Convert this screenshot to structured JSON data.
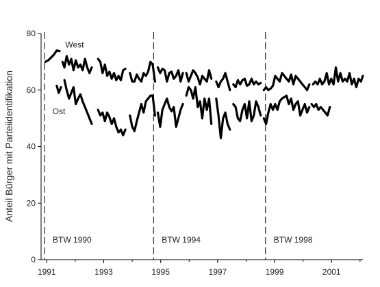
{
  "chart_data": {
    "type": "line",
    "title": "",
    "xlabel": "",
    "ylabel": "Anteil Bürger mit Parteiidentifikation",
    "xlim": [
      1990.8,
      2002.1
    ],
    "ylim": [
      0,
      80
    ],
    "xticks": [
      1991,
      1993,
      1995,
      1997,
      1999,
      2001
    ],
    "yticks": [
      0,
      20,
      40,
      60,
      80
    ],
    "grid": false,
    "legend": "none",
    "colors": {
      "series": "#000000",
      "axis": "#000000",
      "vlines": "#000000"
    },
    "vlines": [
      {
        "x": 1990.92,
        "label": "BTW 1990"
      },
      {
        "x": 1994.75,
        "label": "BTW 1994"
      },
      {
        "x": 1998.68,
        "label": "BTW 1998"
      }
    ],
    "series": [
      {
        "name": "West",
        "segments": [
          [
            [
              1990.95,
              70
            ],
            [
              1991.05,
              70.5
            ],
            [
              1991.15,
              71.5
            ],
            [
              1991.25,
              72.5
            ],
            [
              1991.35,
              74
            ],
            [
              1991.45,
              73.8
            ]
          ],
          [
            [
              1991.55,
              70
            ],
            [
              1991.62,
              68
            ],
            [
              1991.7,
              72
            ],
            [
              1991.78,
              69
            ],
            [
              1991.86,
              71
            ],
            [
              1991.94,
              67
            ],
            [
              1992.02,
              70.5
            ],
            [
              1992.1,
              68
            ],
            [
              1992.18,
              69
            ],
            [
              1992.26,
              67
            ],
            [
              1992.34,
              71
            ],
            [
              1992.42,
              68
            ],
            [
              1992.5,
              66
            ],
            [
              1992.58,
              68
            ]
          ],
          [
            [
              1992.8,
              71
            ],
            [
              1992.88,
              70
            ],
            [
              1992.96,
              66
            ],
            [
              1993.04,
              69
            ],
            [
              1993.12,
              65
            ],
            [
              1993.2,
              66.5
            ],
            [
              1993.28,
              64
            ],
            [
              1993.36,
              66
            ],
            [
              1993.44,
              63.5
            ],
            [
              1993.52,
              65
            ],
            [
              1993.6,
              63.5
            ],
            [
              1993.68,
              67
            ],
            [
              1993.76,
              67.5
            ]
          ],
          [
            [
              1993.92,
              66
            ],
            [
              1994.0,
              63
            ],
            [
              1994.08,
              63
            ],
            [
              1994.16,
              65.5
            ],
            [
              1994.24,
              64
            ],
            [
              1994.32,
              63
            ],
            [
              1994.4,
              66
            ],
            [
              1994.48,
              65
            ],
            [
              1994.56,
              66.5
            ],
            [
              1994.64,
              70
            ],
            [
              1994.72,
              69
            ],
            [
              1994.8,
              63
            ]
          ],
          [
            [
              1994.9,
              68
            ],
            [
              1994.98,
              66
            ],
            [
              1995.06,
              67.5
            ],
            [
              1995.14,
              67
            ],
            [
              1995.22,
              63
            ],
            [
              1995.3,
              66
            ],
            [
              1995.38,
              66.5
            ],
            [
              1995.46,
              64
            ],
            [
              1995.54,
              65
            ],
            [
              1995.62,
              67
            ],
            [
              1995.7,
              63
            ],
            [
              1995.78,
              66
            ]
          ],
          [
            [
              1995.9,
              66
            ],
            [
              1995.98,
              63
            ],
            [
              1996.06,
              65
            ],
            [
              1996.14,
              67
            ],
            [
              1996.22,
              66
            ],
            [
              1996.3,
              64.5
            ],
            [
              1996.38,
              62
            ],
            [
              1996.46,
              65
            ],
            [
              1996.54,
              64
            ],
            [
              1996.62,
              63
            ],
            [
              1996.7,
              67
            ],
            [
              1996.78,
              64
            ]
          ],
          [
            [
              1996.95,
              63
            ],
            [
              1997.03,
              61
            ],
            [
              1997.11,
              63
            ],
            [
              1997.19,
              64
            ],
            [
              1997.27,
              66
            ],
            [
              1997.35,
              63
            ],
            [
              1997.43,
              60
            ]
          ],
          [
            [
              1997.55,
              62
            ],
            [
              1997.63,
              61
            ],
            [
              1997.71,
              63.5
            ],
            [
              1997.79,
              62
            ],
            [
              1997.87,
              63.5
            ],
            [
              1997.95,
              64
            ],
            [
              1998.03,
              61.5
            ],
            [
              1998.11,
              62
            ],
            [
              1998.19,
              64
            ],
            [
              1998.27,
              62
            ],
            [
              1998.35,
              63
            ],
            [
              1998.43,
              62
            ],
            [
              1998.51,
              62.5
            ]
          ],
          [
            [
              1998.62,
              60
            ],
            [
              1998.7,
              61
            ],
            [
              1998.78,
              60
            ],
            [
              1998.86,
              60.5
            ],
            [
              1998.94,
              61.5
            ],
            [
              1999.02,
              65
            ],
            [
              1999.1,
              64
            ],
            [
              1999.18,
              63
            ],
            [
              1999.26,
              66
            ],
            [
              1999.34,
              65
            ],
            [
              1999.42,
              64
            ],
            [
              1999.5,
              63
            ],
            [
              1999.58,
              65.5
            ],
            [
              1999.66,
              62
            ],
            [
              1999.74,
              65
            ],
            [
              1999.82,
              64
            ],
            [
              1999.9,
              63
            ],
            [
              1999.98,
              62
            ],
            [
              2000.06,
              61
            ],
            [
              2000.14,
              60
            ],
            [
              2000.22,
              62
            ]
          ],
          [
            [
              2000.35,
              62
            ],
            [
              2000.43,
              63
            ],
            [
              2000.51,
              62
            ],
            [
              2000.59,
              64
            ],
            [
              2000.67,
              62
            ],
            [
              2000.75,
              63
            ],
            [
              2000.83,
              66
            ],
            [
              2000.91,
              62
            ],
            [
              2000.99,
              64
            ],
            [
              2001.07,
              62
            ],
            [
              2001.15,
              68
            ],
            [
              2001.23,
              63
            ],
            [
              2001.31,
              66
            ],
            [
              2001.39,
              63
            ],
            [
              2001.47,
              64
            ],
            [
              2001.55,
              63
            ],
            [
              2001.63,
              66
            ],
            [
              2001.71,
              62
            ],
            [
              2001.79,
              64
            ],
            [
              2001.87,
              61
            ],
            [
              2001.95,
              64
            ],
            [
              2002.03,
              63
            ],
            [
              2002.1,
              65
            ]
          ]
        ]
      },
      {
        "name": "Ost",
        "segments": [
          [
            [
              1991.35,
              61.5
            ],
            [
              1991.42,
              59
            ],
            [
              1991.5,
              61
            ]
          ],
          [
            [
              1991.62,
              63.5
            ],
            [
              1991.7,
              60
            ],
            [
              1991.78,
              57
            ],
            [
              1991.86,
              59
            ],
            [
              1991.94,
              61
            ],
            [
              1992.02,
              55
            ],
            [
              1992.1,
              57
            ],
            [
              1992.18,
              58.5
            ],
            [
              1992.26,
              56
            ],
            [
              1992.34,
              54
            ],
            [
              1992.42,
              52
            ],
            [
              1992.5,
              50
            ],
            [
              1992.58,
              48
            ]
          ],
          [
            [
              1992.8,
              53
            ],
            [
              1992.88,
              51
            ],
            [
              1992.96,
              52
            ],
            [
              1993.04,
              49
            ],
            [
              1993.12,
              52
            ],
            [
              1993.2,
              50.5
            ],
            [
              1993.28,
              48
            ],
            [
              1993.36,
              50
            ],
            [
              1993.44,
              47
            ],
            [
              1993.52,
              45
            ],
            [
              1993.6,
              46
            ],
            [
              1993.68,
              44
            ],
            [
              1993.76,
              46
            ]
          ],
          [
            [
              1993.92,
              51
            ],
            [
              1994.0,
              47
            ],
            [
              1994.08,
              45.5
            ],
            [
              1994.16,
              49
            ],
            [
              1994.24,
              52
            ],
            [
              1994.32,
              55
            ],
            [
              1994.4,
              52
            ],
            [
              1994.48,
              56
            ],
            [
              1994.56,
              57
            ],
            [
              1994.64,
              58
            ],
            [
              1994.72,
              58
            ],
            [
              1994.8,
              51
            ]
          ],
          [
            [
              1994.9,
              52
            ],
            [
              1994.98,
              47
            ],
            [
              1995.06,
              53
            ],
            [
              1995.14,
              55
            ],
            [
              1995.22,
              57
            ],
            [
              1995.3,
              54
            ],
            [
              1995.38,
              52.5
            ],
            [
              1995.46,
              54
            ],
            [
              1995.54,
              47
            ],
            [
              1995.62,
              50
            ],
            [
              1995.7,
              53
            ],
            [
              1995.78,
              55
            ]
          ],
          [
            [
              1995.9,
              58
            ],
            [
              1995.98,
              61
            ],
            [
              1996.06,
              60
            ],
            [
              1996.14,
              57
            ],
            [
              1996.22,
              61
            ],
            [
              1996.3,
              54
            ],
            [
              1996.38,
              56
            ],
            [
              1996.46,
              50
            ],
            [
              1996.54,
              57
            ],
            [
              1996.62,
              53
            ],
            [
              1996.7,
              57
            ],
            [
              1996.78,
              48
            ]
          ],
          [
            [
              1996.95,
              57
            ],
            [
              1997.03,
              51
            ],
            [
              1997.11,
              43
            ],
            [
              1997.19,
              50
            ],
            [
              1997.27,
              52
            ],
            [
              1997.35,
              48
            ],
            [
              1997.43,
              46
            ]
          ],
          [
            [
              1997.55,
              55
            ],
            [
              1997.63,
              54
            ],
            [
              1997.71,
              50
            ],
            [
              1997.79,
              49
            ],
            [
              1997.87,
              53
            ],
            [
              1997.95,
              55
            ],
            [
              1998.03,
              50
            ],
            [
              1998.11,
              56
            ],
            [
              1998.19,
              49
            ],
            [
              1998.27,
              51
            ],
            [
              1998.35,
              56
            ],
            [
              1998.43,
              54
            ],
            [
              1998.51,
              51
            ]
          ],
          [
            [
              1998.62,
              50
            ],
            [
              1998.7,
              48
            ],
            [
              1998.78,
              52
            ],
            [
              1998.86,
              55
            ],
            [
              1998.94,
              53
            ],
            [
              1999.02,
              55
            ],
            [
              1999.1,
              53
            ],
            [
              1999.18,
              56
            ],
            [
              1999.26,
              57
            ],
            [
              1999.34,
              57.5
            ],
            [
              1999.42,
              58
            ],
            [
              1999.5,
              55
            ],
            [
              1999.58,
              57
            ],
            [
              1999.66,
              53
            ],
            [
              1999.74,
              55
            ],
            [
              1999.82,
              56
            ],
            [
              1999.9,
              51
            ],
            [
              1999.98,
              53
            ],
            [
              2000.06,
              55
            ],
            [
              2000.14,
              52
            ],
            [
              2000.22,
              54
            ]
          ],
          [
            [
              2000.3,
              55
            ],
            [
              2000.38,
              54
            ],
            [
              2000.46,
              55
            ],
            [
              2000.54,
              53
            ],
            [
              2000.62,
              54
            ],
            [
              2000.7,
              53
            ],
            [
              2000.78,
              52
            ],
            [
              2000.86,
              51
            ],
            [
              2000.94,
              54
            ]
          ]
        ]
      }
    ],
    "annotations": [
      {
        "text": "West",
        "x": 1991.65,
        "y": 75
      },
      {
        "text": "Ost",
        "x": 1991.2,
        "y": 51.5
      }
    ]
  }
}
